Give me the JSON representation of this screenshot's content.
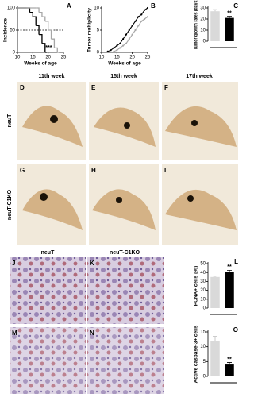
{
  "chart_data": [
    {
      "type": "step",
      "label": "A",
      "xlabel": "Weeks of age",
      "ylabel": "Incidence",
      "xlim": [
        10,
        25
      ],
      "xticks": [
        10,
        15,
        20,
        25
      ],
      "ylim": [
        0,
        100
      ],
      "yticks": [
        0,
        50,
        100
      ],
      "reference_line": {
        "y": 50,
        "style": "dashed"
      },
      "annotation": "***",
      "series": [
        {
          "color": "#000000",
          "x": [
            10,
            13,
            14,
            15,
            16,
            17,
            18,
            19
          ],
          "values": [
            100,
            100,
            90,
            80,
            60,
            40,
            20,
            0
          ]
        },
        {
          "color": "#a6a6a6",
          "x": [
            10,
            16,
            17,
            18,
            19,
            20,
            21,
            22,
            23
          ],
          "values": [
            100,
            100,
            90,
            80,
            70,
            50,
            30,
            10,
            0
          ]
        }
      ]
    },
    {
      "type": "line",
      "label": "B",
      "xlabel": "Weeks of age",
      "ylabel": "Tumor multiplicity",
      "xlim": [
        10,
        25
      ],
      "xticks": [
        10,
        15,
        20,
        25
      ],
      "ylim": [
        0,
        10
      ],
      "yticks": [
        0,
        5,
        10
      ],
      "series": [
        {
          "color": "#000000",
          "x": [
            12,
            13,
            14,
            15,
            16,
            17,
            18,
            19,
            20,
            21,
            22,
            23,
            24,
            25
          ],
          "values": [
            0.2,
            0.5,
            1,
            1.5,
            2,
            3,
            4,
            5,
            6,
            7,
            8,
            8.5,
            9.5,
            10
          ]
        },
        {
          "color": "#a6a6a6",
          "x": [
            14,
            15,
            16,
            17,
            18,
            19,
            20,
            21,
            22,
            23,
            24,
            25
          ],
          "values": [
            0.2,
            0.5,
            1,
            1.5,
            2,
            3,
            4,
            5,
            6,
            7,
            7.5,
            8
          ]
        }
      ]
    },
    {
      "type": "bar",
      "label": "C",
      "ylabel": "Tumor growth rates (days)",
      "categories": [
        null,
        null
      ],
      "values": [
        27,
        21
      ],
      "errors": [
        1.5,
        1.5
      ],
      "colors": [
        "#d9d9d9",
        "#000000"
      ],
      "ylim": [
        0,
        30
      ],
      "yticks": [
        0,
        10,
        20,
        30
      ],
      "annotation": "**"
    },
    {
      "type": "bar",
      "label": "L",
      "ylabel": "PCNA+ cells (%)",
      "categories": [
        null,
        null
      ],
      "values": [
        35,
        41
      ],
      "errors": [
        1,
        1.5
      ],
      "colors": [
        "#d9d9d9",
        "#000000"
      ],
      "ylim": [
        0,
        50
      ],
      "yticks": [
        0,
        10,
        20,
        30,
        40,
        50
      ],
      "annotation": "**"
    },
    {
      "type": "bar",
      "label": "O",
      "ylabel": "Active caspase-3+ cells",
      "categories": [
        null,
        null
      ],
      "values": [
        12,
        4
      ],
      "errors": [
        1.5,
        0.7
      ],
      "colors": [
        "#d9d9d9",
        "#000000"
      ],
      "ylim": [
        0,
        15
      ],
      "yticks": [
        0,
        5,
        10,
        15
      ],
      "annotation": "**"
    }
  ],
  "whole_mounts": {
    "column_headers": [
      "11th week",
      "15th week",
      "17th week"
    ],
    "row_labels": [
      "neuT",
      "neuT-C1KO"
    ],
    "panels": [
      "D",
      "E",
      "F",
      "G",
      "H",
      "I"
    ]
  },
  "histology": {
    "column_labels": [
      "neuT",
      "neuT-C1KO"
    ],
    "panels": [
      "J",
      "K",
      "M",
      "N"
    ]
  }
}
